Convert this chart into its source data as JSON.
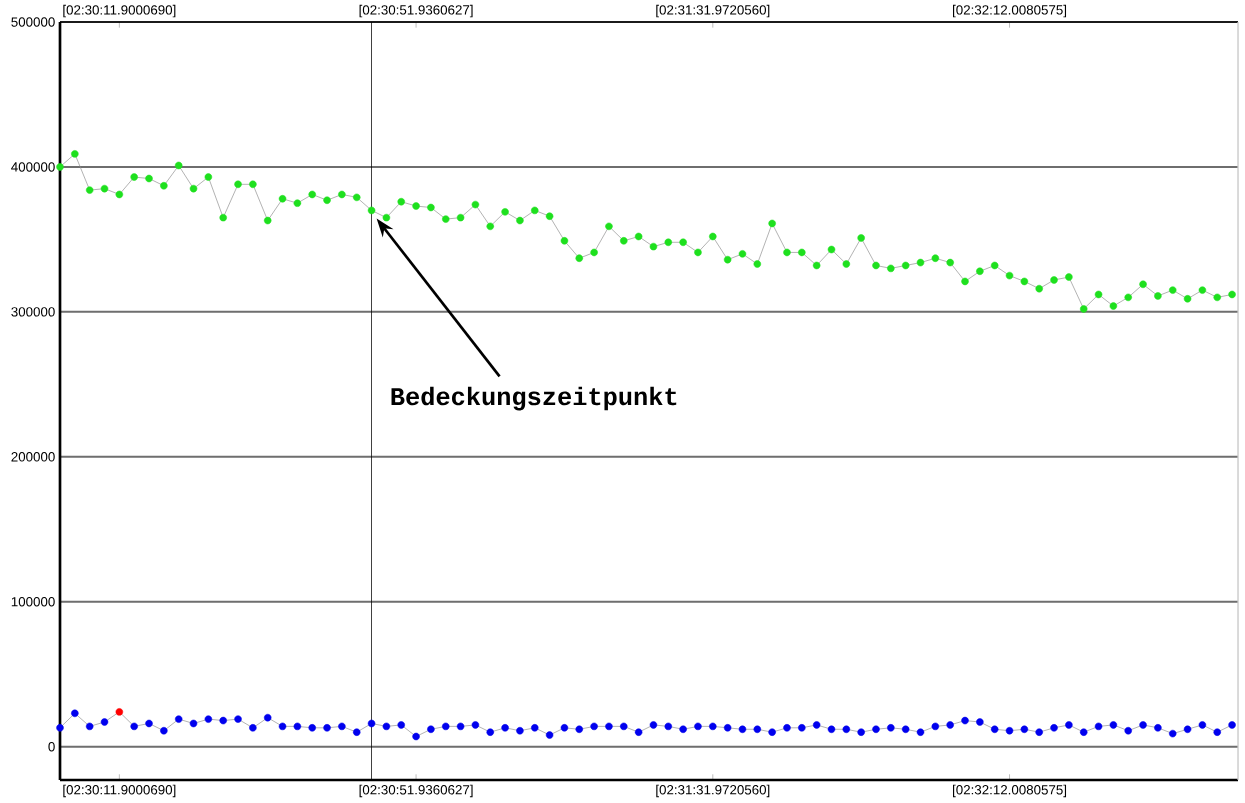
{
  "chart_data": {
    "type": "line",
    "categories": [
      null,
      null,
      null,
      null,
      "[02:30:11.9000690]",
      null,
      null,
      null,
      null,
      null,
      null,
      null,
      null,
      null,
      null,
      null,
      null,
      null,
      null,
      null,
      null,
      null,
      null,
      null,
      "[02:30:51.9360627]",
      null,
      null,
      null,
      null,
      null,
      null,
      null,
      null,
      null,
      null,
      null,
      null,
      null,
      null,
      null,
      null,
      null,
      null,
      null,
      "[02:31:31.9720560]",
      null,
      null,
      null,
      null,
      null,
      null,
      null,
      null,
      null,
      null,
      null,
      null,
      null,
      null,
      null,
      null,
      null,
      null,
      null,
      "[02:32:12.0080575]",
      null,
      null,
      null,
      null,
      null,
      null,
      null,
      null,
      null,
      null,
      null,
      null,
      null,
      null,
      null
    ],
    "series": [
      {
        "color": "#1ee01e",
        "values": [
          400000,
          409000,
          384000,
          385000,
          381000,
          393000,
          392000,
          387000,
          401000,
          385000,
          393000,
          365000,
          388000,
          388000,
          363000,
          378000,
          375000,
          381000,
          377000,
          381000,
          379000,
          370000,
          365000,
          376000,
          373000,
          372000,
          364000,
          365000,
          374000,
          359000,
          369000,
          363000,
          370000,
          366000,
          349000,
          337000,
          341000,
          359000,
          349000,
          352000,
          345000,
          348000,
          348000,
          341000,
          352000,
          336000,
          340000,
          333000,
          361000,
          341000,
          341000,
          332000,
          343000,
          333000,
          351000,
          332000,
          330000,
          332000,
          334000,
          337000,
          334000,
          321000,
          328000,
          332000,
          325000,
          321000,
          316000,
          322000,
          324000,
          302000,
          312000,
          304000,
          310000,
          319000,
          311000,
          315000,
          309000,
          315000,
          310000,
          312000
        ]
      },
      {
        "values": [
          13000,
          23000,
          14000,
          17000,
          24000,
          14000,
          16000,
          11000,
          19000,
          16000,
          19000,
          18000,
          19000,
          13000,
          20000,
          14000,
          14000,
          13000,
          13000,
          14000,
          10000,
          16000,
          14000,
          15000,
          7000,
          12000,
          14000,
          14000,
          15000,
          10000,
          13000,
          11000,
          13000,
          8000,
          13000,
          12000,
          14000,
          14000,
          14000,
          10000,
          15000,
          14000,
          12000,
          14000,
          14000,
          13000,
          12000,
          12000,
          10000,
          13000,
          13000,
          15000,
          12000,
          12000,
          10000,
          12000,
          13000,
          12000,
          10000,
          14000,
          15000,
          18000,
          17000,
          12000,
          11000,
          12000,
          10000,
          13000,
          15000,
          10000,
          14000,
          15000,
          11000,
          15000,
          13000,
          9000,
          12000,
          15000,
          10000,
          15000
        ],
        "colors": [
          "#0000ee",
          "#0000ee",
          "#0000ee",
          "#0000ee",
          "#ff0000",
          "#0000ee",
          "#0000ee",
          "#0000ee",
          "#0000ee",
          "#0000ee",
          "#0000ee",
          "#0000ee",
          "#0000ee",
          "#0000ee",
          "#0000ee",
          "#0000ee",
          "#0000ee",
          "#0000ee",
          "#0000ee",
          "#0000ee",
          "#0000ee",
          "#0000ee",
          "#0000ee",
          "#0000ee",
          "#0000ee",
          "#0000ee",
          "#0000ee",
          "#0000ee",
          "#0000ee",
          "#0000ee",
          "#0000ee",
          "#0000ee",
          "#0000ee",
          "#0000ee",
          "#0000ee",
          "#0000ee",
          "#0000ee",
          "#0000ee",
          "#0000ee",
          "#0000ee",
          "#0000ee",
          "#0000ee",
          "#0000ee",
          "#0000ee",
          "#0000ee",
          "#0000ee",
          "#0000ee",
          "#0000ee",
          "#0000ee",
          "#0000ee",
          "#0000ee",
          "#0000ee",
          "#0000ee",
          "#0000ee",
          "#0000ee",
          "#0000ee",
          "#0000ee",
          "#0000ee",
          "#0000ee",
          "#0000ee",
          "#0000ee",
          "#0000ee",
          "#0000ee",
          "#0000ee",
          "#0000ee",
          "#0000ee",
          "#0000ee",
          "#0000ee",
          "#0000ee",
          "#0000ee",
          "#0000ee",
          "#0000ee",
          "#0000ee",
          "#0000ee",
          "#0000ee",
          "#0000ee",
          "#0000ee",
          "#0000ee",
          "#0000ee",
          "#0000ee"
        ]
      }
    ],
    "ylim": [
      -23000,
      500000
    ],
    "yticks": [
      0,
      100000,
      200000,
      300000,
      400000,
      500000
    ],
    "grid": "y",
    "marker": "circle",
    "annotations": [
      "Bedeckungszeitpunkt"
    ]
  }
}
